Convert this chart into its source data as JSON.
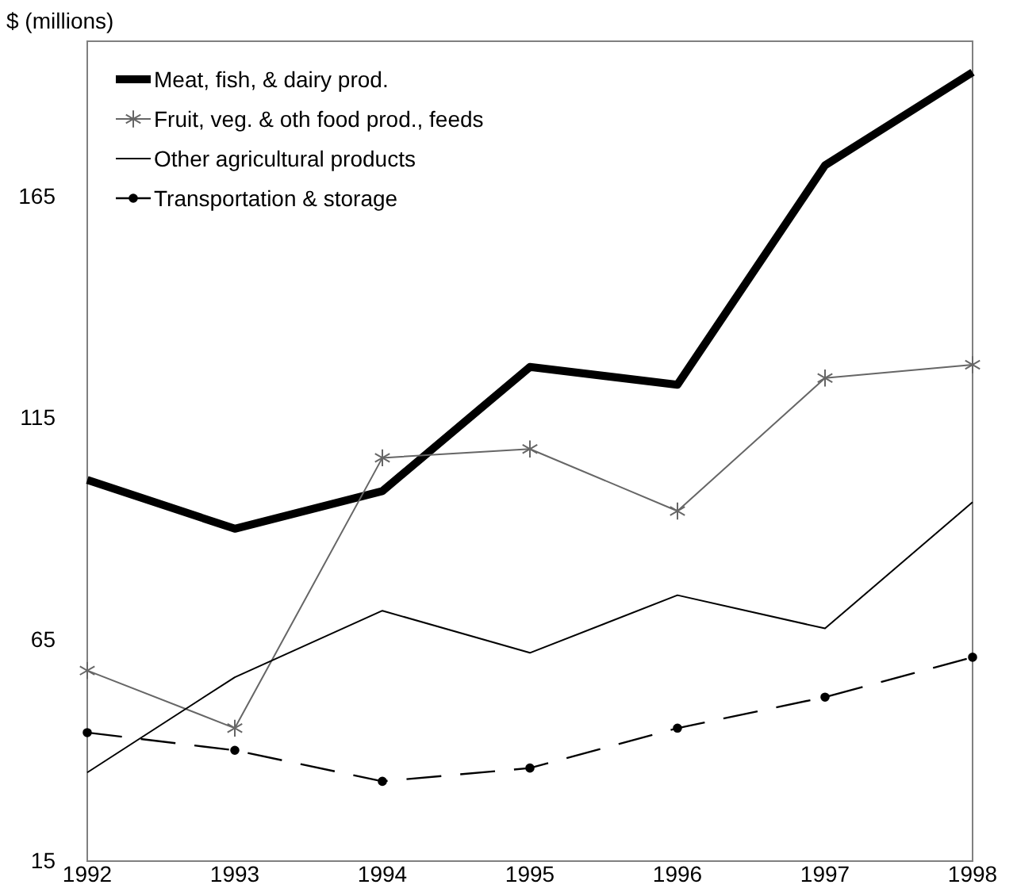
{
  "chart_data": {
    "type": "line",
    "ylabel": "$ (millions)",
    "x": [
      1992,
      1993,
      1994,
      1995,
      1996,
      1997,
      1998
    ],
    "xlim": [
      1992,
      1998
    ],
    "xticks": [
      1992,
      1993,
      1994,
      1995,
      1996,
      1997,
      1998
    ],
    "ylim": [
      15,
      200
    ],
    "yticks": [
      15,
      65,
      115,
      165
    ],
    "grid": false,
    "legend": "top left",
    "series": [
      {
        "name": "Meat, fish, & dairy prod.",
        "color": "#000000",
        "marker": "none",
        "line_style": "solid",
        "values": [
          101,
          90,
          98.5,
          126.5,
          122.5,
          172,
          193
        ]
      },
      {
        "name": "Fruit, veg. & oth food prod., feeds",
        "color": "#666666",
        "marker": "cross",
        "line_style": "solid",
        "values": [
          58,
          45,
          106,
          108,
          94,
          124,
          127
        ]
      },
      {
        "name": "Other agricultural products",
        "color": "#000000",
        "marker": "none",
        "line_style": "solid",
        "values": [
          35,
          56.5,
          71.5,
          62,
          75,
          67.5,
          96
        ]
      },
      {
        "name": "Transportation & storage",
        "color": "#000000",
        "marker": "circle",
        "line_style": "dashed",
        "values": [
          44,
          40,
          33,
          36,
          45,
          52,
          61
        ]
      }
    ]
  }
}
